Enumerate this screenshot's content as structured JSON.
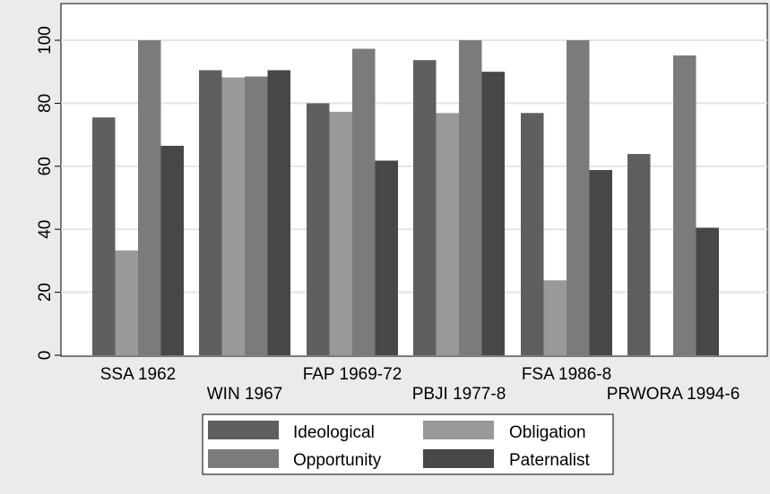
{
  "chart_data": {
    "type": "bar",
    "categories": [
      "SSA 1962",
      "WIN 1967",
      "FAP 1969-72",
      "PBJI 1977-8",
      "FSA 1986-8",
      "PRWORA 1994-6"
    ],
    "series": [
      {
        "name": "Ideological",
        "values": [
          75.5,
          90.5,
          80,
          93.7,
          76.9,
          63.9
        ],
        "color": "#5f5f5f"
      },
      {
        "name": "Obligation",
        "values": [
          33.3,
          88.2,
          77.3,
          76.9,
          23.8,
          null
        ],
        "color": "#999999"
      },
      {
        "name": "Opportunity",
        "values": [
          100,
          88.5,
          97.3,
          100,
          100,
          95.2
        ],
        "color": "#7b7b7b"
      },
      {
        "name": "Paternalist",
        "values": [
          66.5,
          90.5,
          61.8,
          90,
          58.8,
          40.5
        ],
        "color": "#474747"
      }
    ],
    "yticks": [
      0,
      20,
      40,
      60,
      80,
      100
    ],
    "ylim": [
      0,
      100
    ],
    "grid": true,
    "legend_position": "bottom"
  }
}
